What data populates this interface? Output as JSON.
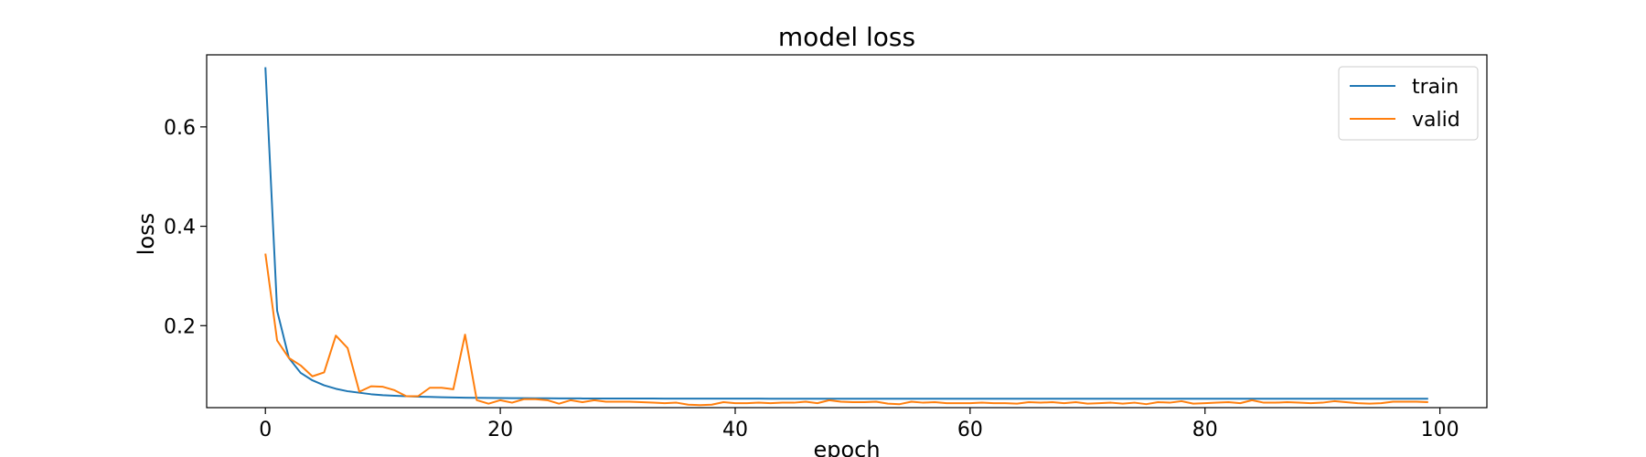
{
  "chart_data": {
    "type": "line",
    "title": "model loss",
    "xlabel": "epoch",
    "ylabel": "loss",
    "xlim": [
      -5,
      104
    ],
    "ylim": [
      0.035,
      0.745
    ],
    "xticks": [
      0,
      20,
      40,
      60,
      80,
      100
    ],
    "xtick_labels": [
      "0",
      "20",
      "40",
      "60",
      "80",
      "100"
    ],
    "yticks": [
      0.2,
      0.4,
      0.6
    ],
    "ytick_labels": [
      "0.2",
      "0.4",
      "0.6"
    ],
    "grid": false,
    "legend_position": "top-right",
    "series": [
      {
        "name": "train",
        "color": "#1f77b4",
        "x": [
          0,
          1,
          2,
          3,
          4,
          5,
          6,
          7,
          8,
          9,
          10,
          11,
          12,
          13,
          14,
          15,
          16,
          17,
          18,
          19,
          20,
          21,
          22,
          23,
          24,
          25,
          26,
          27,
          28,
          29,
          30,
          31,
          32,
          33,
          34,
          35,
          36,
          37,
          38,
          39,
          40,
          41,
          42,
          43,
          44,
          45,
          46,
          47,
          48,
          49,
          50,
          51,
          52,
          53,
          54,
          55,
          56,
          57,
          58,
          59,
          60,
          61,
          62,
          63,
          64,
          65,
          66,
          67,
          68,
          69,
          70,
          71,
          72,
          73,
          74,
          75,
          76,
          77,
          78,
          79,
          80,
          81,
          82,
          83,
          84,
          85,
          86,
          87,
          88,
          89,
          90,
          91,
          92,
          93,
          94,
          95,
          96,
          97,
          98,
          99
        ],
        "values": [
          0.72,
          0.23,
          0.135,
          0.105,
          0.09,
          0.08,
          0.073,
          0.068,
          0.065,
          0.062,
          0.06,
          0.059,
          0.058,
          0.057,
          0.0565,
          0.056,
          0.0555,
          0.055,
          0.0548,
          0.0545,
          0.0543,
          0.0541,
          0.054,
          0.0539,
          0.0538,
          0.0537,
          0.0536,
          0.0535,
          0.0535,
          0.0534,
          0.0534,
          0.0533,
          0.0533,
          0.0533,
          0.0532,
          0.0532,
          0.0532,
          0.0532,
          0.0531,
          0.0531,
          0.0531,
          0.0531,
          0.0531,
          0.053,
          0.053,
          0.053,
          0.053,
          0.053,
          0.053,
          0.053,
          0.053,
          0.053,
          0.053,
          0.053,
          0.053,
          0.053,
          0.053,
          0.053,
          0.053,
          0.053,
          0.053,
          0.053,
          0.053,
          0.053,
          0.053,
          0.053,
          0.053,
          0.053,
          0.053,
          0.053,
          0.053,
          0.053,
          0.053,
          0.053,
          0.053,
          0.053,
          0.053,
          0.053,
          0.053,
          0.053,
          0.053,
          0.053,
          0.053,
          0.053,
          0.053,
          0.053,
          0.053,
          0.053,
          0.053,
          0.053,
          0.053,
          0.053,
          0.053,
          0.053,
          0.053,
          0.053,
          0.053,
          0.053,
          0.053,
          0.053
        ]
      },
      {
        "name": "valid",
        "color": "#ff7f0e",
        "x": [
          0,
          1,
          2,
          3,
          4,
          5,
          6,
          7,
          8,
          9,
          10,
          11,
          12,
          13,
          14,
          15,
          16,
          17,
          18,
          19,
          20,
          21,
          22,
          23,
          24,
          25,
          26,
          27,
          28,
          29,
          30,
          31,
          32,
          33,
          34,
          35,
          36,
          37,
          38,
          39,
          40,
          41,
          42,
          43,
          44,
          45,
          46,
          47,
          48,
          49,
          50,
          51,
          52,
          53,
          54,
          55,
          56,
          57,
          58,
          59,
          60,
          61,
          62,
          63,
          64,
          65,
          66,
          67,
          68,
          69,
          70,
          71,
          72,
          73,
          74,
          75,
          76,
          77,
          78,
          79,
          80,
          81,
          82,
          83,
          84,
          85,
          86,
          87,
          88,
          89,
          90,
          91,
          92,
          93,
          94,
          95,
          96,
          97,
          98,
          99
        ],
        "values": [
          0.345,
          0.17,
          0.135,
          0.12,
          0.098,
          0.106,
          0.18,
          0.155,
          0.067,
          0.078,
          0.077,
          0.07,
          0.058,
          0.058,
          0.075,
          0.075,
          0.072,
          0.182,
          0.05,
          0.043,
          0.05,
          0.045,
          0.052,
          0.052,
          0.05,
          0.043,
          0.05,
          0.046,
          0.05,
          0.047,
          0.047,
          0.047,
          0.046,
          0.045,
          0.044,
          0.045,
          0.041,
          0.04,
          0.041,
          0.046,
          0.044,
          0.044,
          0.045,
          0.044,
          0.045,
          0.045,
          0.047,
          0.044,
          0.05,
          0.047,
          0.046,
          0.046,
          0.047,
          0.043,
          0.042,
          0.047,
          0.045,
          0.046,
          0.044,
          0.044,
          0.044,
          0.045,
          0.044,
          0.044,
          0.043,
          0.046,
          0.045,
          0.046,
          0.044,
          0.046,
          0.043,
          0.044,
          0.045,
          0.043,
          0.045,
          0.042,
          0.046,
          0.045,
          0.048,
          0.043,
          0.044,
          0.045,
          0.046,
          0.044,
          0.05,
          0.045,
          0.045,
          0.046,
          0.045,
          0.044,
          0.045,
          0.048,
          0.046,
          0.044,
          0.043,
          0.044,
          0.047,
          0.047,
          0.047,
          0.046
        ]
      }
    ]
  }
}
